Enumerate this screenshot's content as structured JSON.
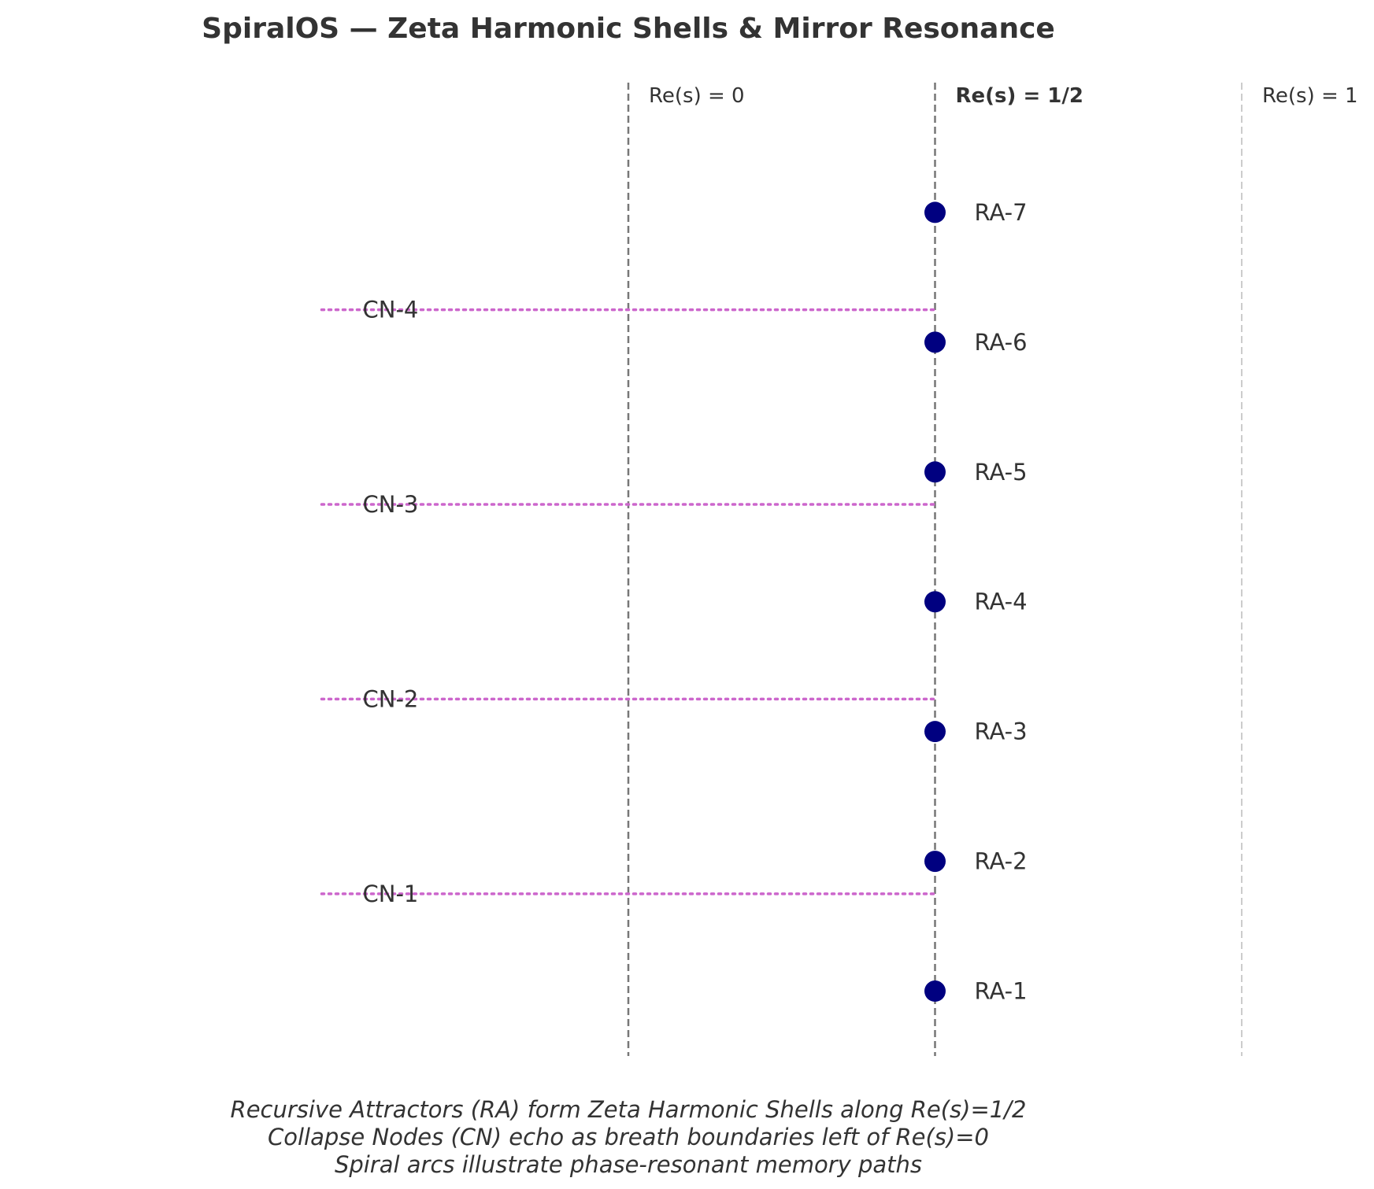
{
  "chart_data": {
    "type": "scatter",
    "title": "SpiralOS — Zeta Harmonic Shells & Mirror Resonance",
    "xlim": [
      -1,
      1.5
    ],
    "ylim": [
      0,
      7.5
    ],
    "grid": false,
    "vertical_lines": [
      {
        "x": 0,
        "label": "Re(s) = 0",
        "bold": false,
        "color": "#777777",
        "style": "dashed"
      },
      {
        "x": 0.5,
        "label": "Re(s) = 1/2",
        "bold": true,
        "color": "#777777",
        "style": "dashed"
      },
      {
        "x": 1,
        "label": "Re(s) = 1",
        "bold": false,
        "color": "#bbbbbb",
        "style": "dashed"
      }
    ],
    "attractors": {
      "color": "#000080",
      "x": 0.5,
      "points": [
        {
          "label": "RA-1",
          "y": 0.5
        },
        {
          "label": "RA-2",
          "y": 1.5
        },
        {
          "label": "RA-3",
          "y": 2.5
        },
        {
          "label": "RA-4",
          "y": 3.5
        },
        {
          "label": "RA-5",
          "y": 4.5
        },
        {
          "label": "RA-6",
          "y": 5.5
        },
        {
          "label": "RA-7",
          "y": 6.5
        }
      ]
    },
    "collapse_nodes": {
      "color": "#cc66cc",
      "style": "dotted",
      "x_start": -0.5,
      "x_end": 0.5,
      "nodes": [
        {
          "label": "CN-1",
          "y": 1.25
        },
        {
          "label": "CN-2",
          "y": 2.75
        },
        {
          "label": "CN-3",
          "y": 4.25
        },
        {
          "label": "CN-4",
          "y": 5.75
        }
      ]
    }
  },
  "caption": {
    "line1": "Recursive Attractors (RA) form Zeta Harmonic Shells along Re(s)=1/2",
    "line2": "Collapse Nodes (CN) echo as breath boundaries left of Re(s)=0",
    "line3": "Spiral arcs illustrate phase-resonant memory paths"
  }
}
